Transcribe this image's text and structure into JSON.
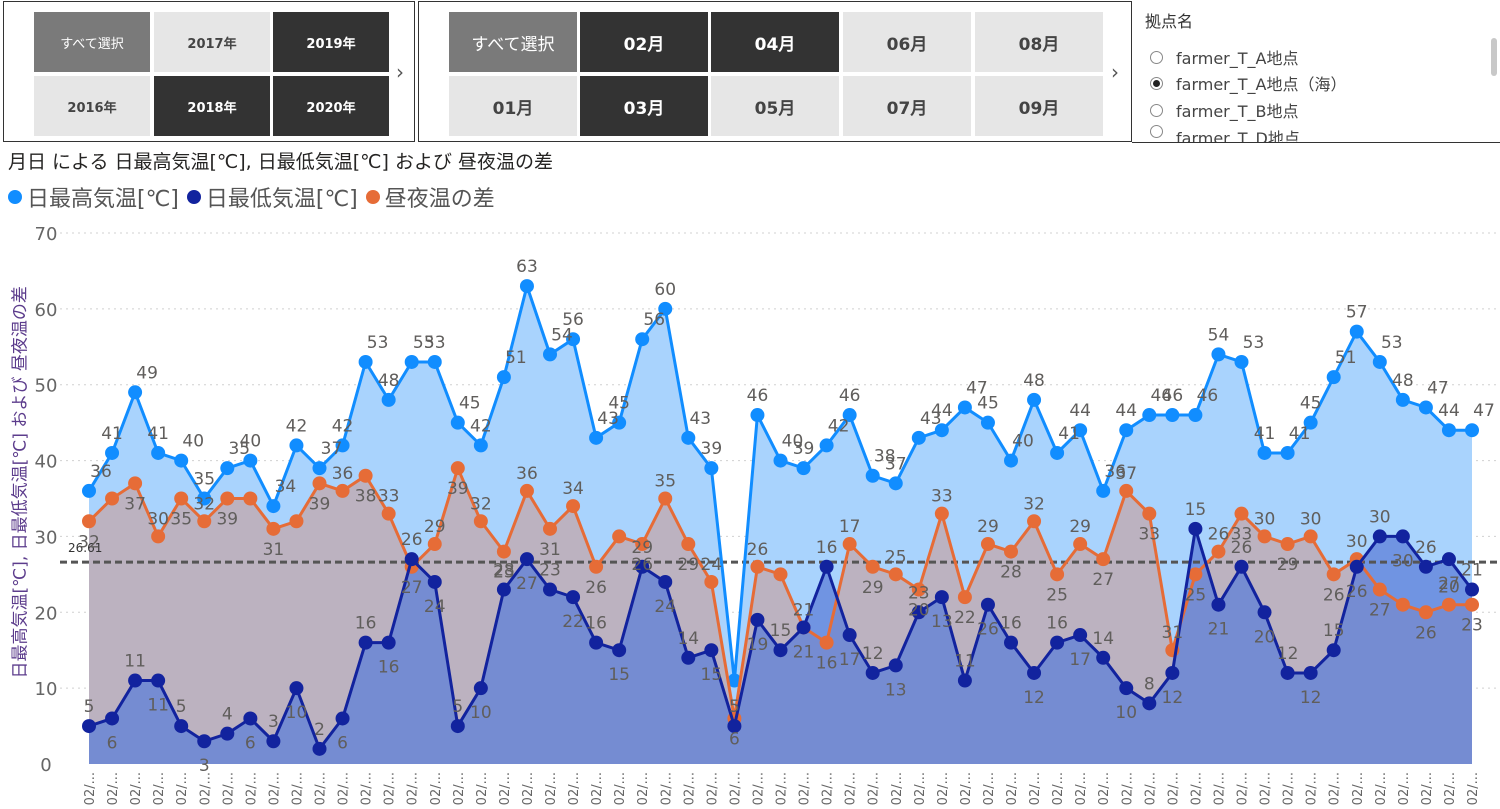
{
  "year_slicer": {
    "tiles": [
      {
        "label": "すべて選択",
        "state": "all"
      },
      {
        "label": "2017年",
        "state": "unselected"
      },
      {
        "label": "2019年",
        "state": "selected"
      },
      {
        "label": "2016年",
        "state": "unselected"
      },
      {
        "label": "2018年",
        "state": "selected"
      },
      {
        "label": "2020年",
        "state": "selected"
      }
    ],
    "arrow": "›"
  },
  "month_slicer": {
    "tiles": [
      {
        "label": "すべて選択",
        "state": "all"
      },
      {
        "label": "02月",
        "state": "selected"
      },
      {
        "label": "04月",
        "state": "selected"
      },
      {
        "label": "06月",
        "state": "unselected"
      },
      {
        "label": "08月",
        "state": "unselected"
      },
      {
        "label": "01月",
        "state": "unselected"
      },
      {
        "label": "03月",
        "state": "selected"
      },
      {
        "label": "05月",
        "state": "unselected"
      },
      {
        "label": "07月",
        "state": "unselected"
      },
      {
        "label": "09月",
        "state": "unselected"
      }
    ],
    "arrow": "›"
  },
  "location_slicer": {
    "title": "拠点名",
    "options": [
      {
        "label": "farmer_T_A地点",
        "checked": false
      },
      {
        "label": "farmer_T_A地点（海）",
        "checked": true
      },
      {
        "label": "farmer_T_B地点",
        "checked": false
      },
      {
        "label": "farmer_T_D地点",
        "checked": false
      }
    ]
  },
  "chart_data": {
    "type": "area",
    "title": "月日 による 日最高気温[℃], 日最低気温[℃] および 昼夜温の差",
    "ylabel": "日最高気温[℃], 日最低気温[℃] および 昼夜温の差",
    "xlabel": "",
    "ylim": [
      0,
      70
    ],
    "yticks": [
      0,
      10,
      20,
      30,
      40,
      50,
      60,
      70
    ],
    "reference_line": {
      "value": 26.61,
      "label": "26.61"
    },
    "x_tick_label": "02/...",
    "categories_count": 61,
    "series": [
      {
        "name": "日最高気温[℃]",
        "color": "#118DFF",
        "fill": "#a9d3fd",
        "values": [
          36,
          41,
          49,
          41,
          40,
          35,
          39,
          40,
          34,
          42,
          39,
          42,
          53,
          48,
          53,
          53,
          45,
          42,
          51,
          63,
          54,
          56,
          43,
          45,
          56,
          60,
          43,
          39,
          11,
          46,
          40,
          39,
          42,
          46,
          38,
          37,
          43,
          44,
          47,
          45,
          40,
          48,
          41,
          44,
          36,
          44,
          46,
          46,
          46,
          54,
          53,
          41,
          41,
          45,
          51,
          57,
          53,
          48,
          47,
          44,
          44
        ]
      },
      {
        "name": "日最低気温[℃]",
        "color": "#12239E",
        "fill": "#5d7fd8",
        "values": [
          5,
          6,
          11,
          11,
          5,
          3,
          4,
          6,
          3,
          10,
          2,
          6,
          16,
          16,
          27,
          24,
          5,
          10,
          23,
          27,
          23,
          22,
          16,
          15,
          26,
          24,
          14,
          15,
          5,
          19,
          15,
          18,
          26,
          17,
          12,
          13,
          20,
          22,
          11,
          21,
          16,
          12,
          16,
          17,
          14,
          10,
          8,
          12,
          31,
          21,
          26,
          20,
          12,
          12,
          15,
          26,
          30,
          30,
          26,
          27,
          23
        ]
      },
      {
        "name": "昼夜温の差",
        "color": "#E66C37",
        "fill": "#c1a9ae",
        "values": [
          32,
          35,
          37,
          30,
          35,
          32,
          35,
          35,
          31,
          32,
          37,
          36,
          38,
          33,
          26,
          29,
          39,
          32,
          28,
          36,
          31,
          34,
          26,
          30,
          29,
          35,
          29,
          24,
          6,
          26,
          25,
          18,
          16,
          29,
          26,
          25,
          23,
          33,
          22,
          29,
          28,
          32,
          25,
          29,
          27,
          36,
          33,
          15,
          25,
          28,
          33,
          30,
          29,
          30,
          25,
          27,
          23,
          21,
          20,
          21,
          21
        ]
      }
    ],
    "value_labels": {
      "max": [
        "36",
        "41",
        "49",
        "41",
        "40",
        "35",
        "35",
        "40",
        "34",
        "42",
        "37",
        "42",
        "53",
        "48",
        "53",
        "53",
        "45",
        "42",
        "51",
        "63",
        "54",
        "56",
        "43",
        "45",
        "56",
        "60",
        "43",
        "39",
        "",
        "46",
        "40",
        "39",
        "42",
        "46",
        "38",
        "37",
        "43",
        "44",
        "47",
        "45",
        "40",
        "48",
        "41",
        "44",
        "36",
        "44",
        "46",
        "46",
        "46",
        "54",
        "53",
        "41",
        "41",
        "45",
        "51",
        "57",
        "53",
        "48",
        "47",
        "44",
        "47"
      ],
      "min": [
        "5",
        "6",
        "11",
        "11",
        "5",
        "3",
        "4",
        "6",
        "3",
        "10",
        "2",
        "6",
        "16",
        "16",
        "26",
        "24",
        "5",
        "10",
        "28",
        "27",
        "23",
        "22",
        "16",
        "15",
        "29",
        "24",
        "14",
        "15",
        "5",
        "19",
        "15",
        "21",
        "16",
        "17",
        "12",
        "13",
        "23",
        "13",
        "11",
        "26",
        "16",
        "12",
        "16",
        "17",
        "14",
        "10",
        "8",
        "12",
        "15",
        "21",
        "26",
        "20",
        "12",
        "12",
        "15",
        "26",
        "30",
        "30",
        "26",
        "27",
        "21"
      ],
      "diff": [
        "32",
        "",
        "37",
        "30",
        "35",
        "32",
        "39",
        "",
        "31",
        "",
        "39",
        "36",
        "38",
        "33",
        "27",
        "29",
        "39",
        "32",
        "23",
        "36",
        "31",
        "34",
        "26",
        "",
        "26",
        "35",
        "29",
        "24",
        "6",
        "26",
        "",
        "21",
        "16",
        "17",
        "29",
        "25",
        "20",
        "33",
        "22",
        "29",
        "28",
        "32",
        "25",
        "29",
        "27",
        "37",
        "33",
        "31",
        "25",
        "26",
        "33",
        "30",
        "29",
        "30",
        "26",
        "30",
        "27",
        "",
        "26",
        "20",
        "23"
      ]
    }
  }
}
